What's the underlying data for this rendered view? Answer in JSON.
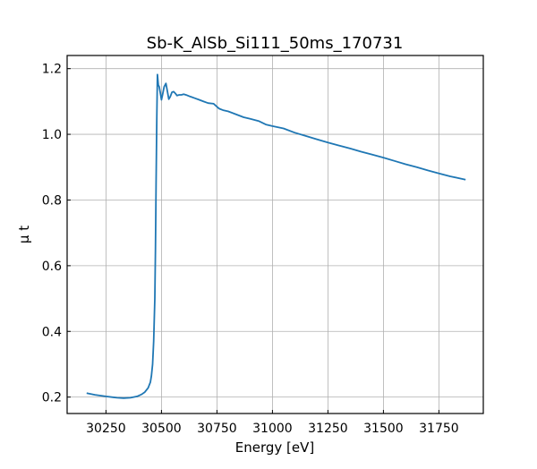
{
  "chart_data": {
    "type": "line",
    "title": "Sb-K_AlSb_Si111_50ms_170731",
    "xlabel": "Energy [eV]",
    "ylabel": "μ t",
    "xlim": [
      30075,
      31950
    ],
    "ylim": [
      0.15,
      1.24
    ],
    "xticks": [
      30250,
      30500,
      30750,
      31000,
      31250,
      31500,
      31750
    ],
    "yticks": [
      0.2,
      0.4,
      0.6,
      0.8,
      1.0,
      1.2
    ],
    "xtick_labels": [
      "30250",
      "30500",
      "30750",
      "31000",
      "31250",
      "31500",
      "31750"
    ],
    "ytick_labels": [
      "0.2",
      "0.4",
      "0.6",
      "0.8",
      "1.0",
      "1.2"
    ],
    "grid": true,
    "line_color": "#1f77b4",
    "series": [
      {
        "x": [
          30163,
          30200,
          30250,
          30300,
          30330,
          30360,
          30390,
          30410,
          30425,
          30440,
          30450,
          30455,
          30460,
          30465,
          30470,
          30473,
          30476,
          30479,
          30482,
          30486,
          30490,
          30495,
          30500,
          30505,
          30512,
          30520,
          30527,
          30533,
          30540,
          30547,
          30555,
          30562,
          30570,
          30580,
          30590,
          30600,
          30615,
          30630,
          30650,
          30670,
          30690,
          30710,
          30735,
          30760,
          30780,
          30800,
          30840,
          30870,
          30900,
          30940,
          30970,
          31000,
          31050,
          31100,
          31150,
          31200,
          31250,
          31300,
          31350,
          31400,
          31450,
          31500,
          31550,
          31600,
          31650,
          31700,
          31750,
          31800,
          31870
        ],
        "y": [
          0.212,
          0.207,
          0.202,
          0.198,
          0.197,
          0.198,
          0.202,
          0.208,
          0.215,
          0.228,
          0.245,
          0.265,
          0.3,
          0.37,
          0.5,
          0.65,
          0.85,
          1.05,
          1.182,
          1.15,
          1.145,
          1.125,
          1.105,
          1.12,
          1.145,
          1.155,
          1.13,
          1.107,
          1.115,
          1.128,
          1.13,
          1.125,
          1.118,
          1.12,
          1.12,
          1.122,
          1.119,
          1.115,
          1.11,
          1.105,
          1.1,
          1.095,
          1.093,
          1.078,
          1.073,
          1.07,
          1.06,
          1.052,
          1.047,
          1.04,
          1.03,
          1.025,
          1.018,
          1.005,
          0.995,
          0.985,
          0.975,
          0.966,
          0.957,
          0.947,
          0.938,
          0.929,
          0.919,
          0.909,
          0.9,
          0.89,
          0.881,
          0.872,
          0.862
        ]
      }
    ]
  }
}
